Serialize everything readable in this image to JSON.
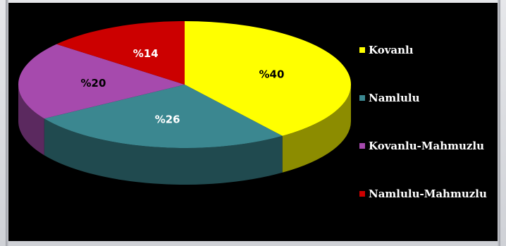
{
  "chart_data": {
    "type": "pie",
    "categories": [
      "Kovanlı",
      "Namlulu",
      "Kovanlu-Mahmuzlu",
      "Namlulu-Mahmuzlu"
    ],
    "values": [
      40,
      26,
      20,
      14
    ],
    "data_labels": [
      "%40",
      "%26",
      "%20",
      "%14"
    ],
    "colors": [
      "#ffff00",
      "#3b8790",
      "#a64aad",
      "#cc0000"
    ],
    "label_colors": [
      "#000000",
      "#ffffff",
      "#000000",
      "#ffffff"
    ],
    "style": "3d",
    "legend": "right",
    "background": "#000000"
  }
}
